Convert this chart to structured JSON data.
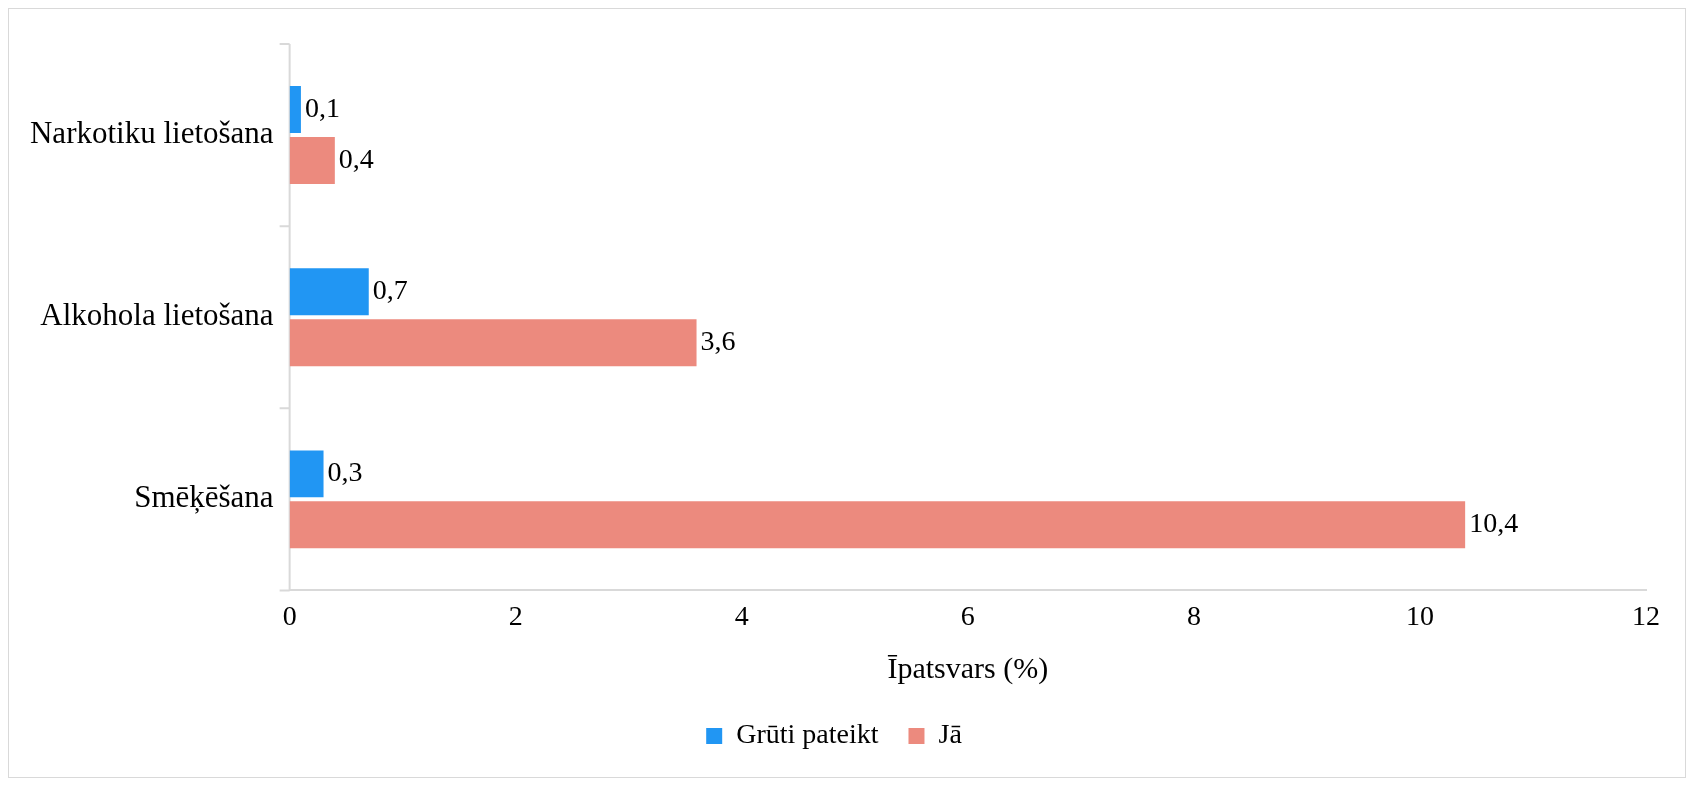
{
  "chart_data": {
    "type": "bar",
    "orientation": "horizontal",
    "categories": [
      "Narkotiku lietošana",
      "Alkohola lietošana",
      "Smēķēšana"
    ],
    "series": [
      {
        "name": "Grūti pateikt",
        "color": "#2196f3",
        "values": [
          0.1,
          0.7,
          0.3
        ],
        "value_labels": [
          "0,1",
          "0,7",
          "0,3"
        ]
      },
      {
        "name": "Jā",
        "color": "#ec8a7e",
        "values": [
          0.4,
          3.6,
          10.4
        ],
        "value_labels": [
          "0,4",
          "3,6",
          "10,4"
        ]
      }
    ],
    "xlabel": "Īpatsvars (%)",
    "xlim": [
      0,
      12
    ],
    "xticks": [
      0,
      2,
      4,
      6,
      8,
      10,
      12
    ],
    "grid": false,
    "legend": "bottom"
  }
}
